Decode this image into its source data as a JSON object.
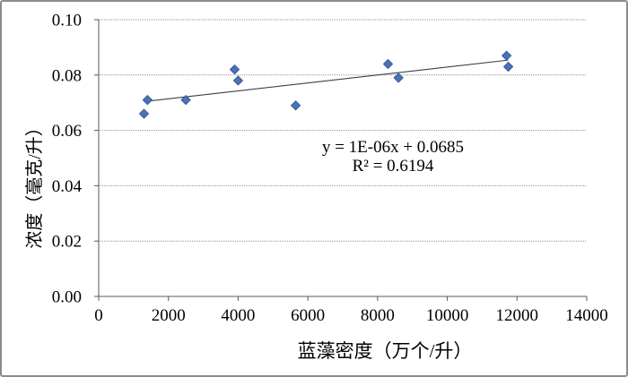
{
  "chart_data": {
    "type": "scatter",
    "title": "",
    "xlabel": "蓝藻密度（万个/升）",
    "ylabel": "浓度（毫克/升）",
    "xlim": [
      0,
      14000
    ],
    "ylim": [
      0,
      0.1
    ],
    "xticks": [
      "0",
      "2000",
      "4000",
      "6000",
      "8000",
      "10000",
      "12000",
      "14000"
    ],
    "yticks": [
      "0.00",
      "0.02",
      "0.04",
      "0.06",
      "0.08",
      "0.10"
    ],
    "grid": "horizontal-dotted",
    "legend": "none",
    "points": [
      [
        1300,
        0.066
      ],
      [
        1400,
        0.071
      ],
      [
        2500,
        0.071
      ],
      [
        3900,
        0.082
      ],
      [
        4000,
        0.078
      ],
      [
        5650,
        0.069
      ],
      [
        8300,
        0.084
      ],
      [
        8600,
        0.079
      ],
      [
        11700,
        0.087
      ],
      [
        11750,
        0.083
      ]
    ],
    "trendline": {
      "equation": "y = 1E-06x + 0.0685",
      "r_squared": "R² = 0.6194",
      "x1": 1300,
      "y1": 0.0704,
      "x2": 11750,
      "y2": 0.0854
    },
    "colors": {
      "marker": "#4A72B8",
      "marker_edge": "#3A5A94",
      "trendline": "#404040",
      "axis": "#595959",
      "gridline": "#8f8f8f",
      "border": "#8C8C8C",
      "text": "#000000"
    }
  }
}
